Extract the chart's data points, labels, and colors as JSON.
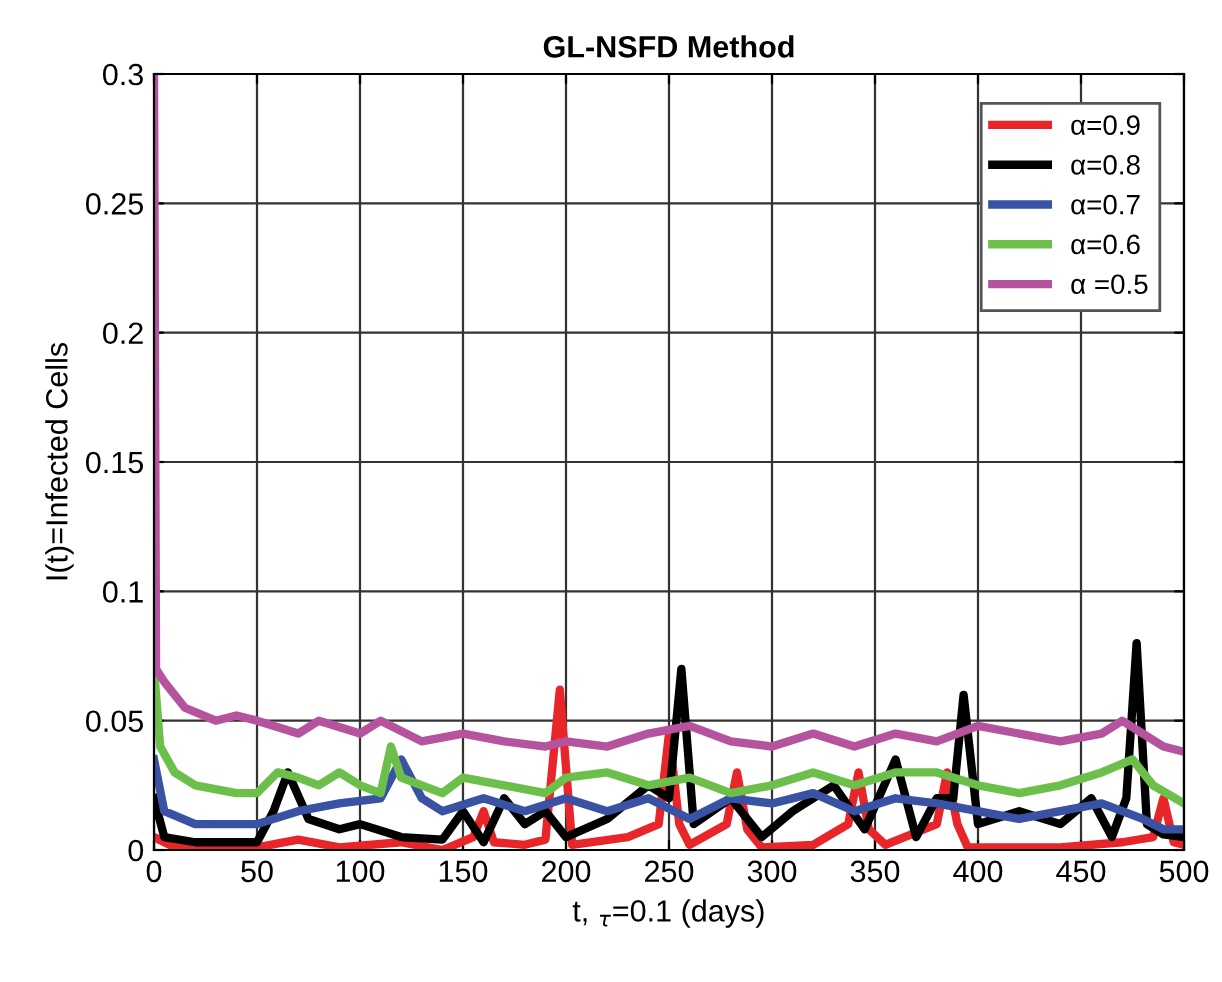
{
  "chart_data": {
    "type": "line",
    "title": "GL-NSFD Method",
    "xlabel": "t, $_{τ}$=0.1 (days)",
    "ylabel": "I(t)=Infected Cells",
    "xlim": [
      0,
      500
    ],
    "ylim": [
      0,
      0.3
    ],
    "xticks": [
      0,
      50,
      100,
      150,
      200,
      250,
      300,
      350,
      400,
      450,
      500
    ],
    "yticks": [
      0,
      0.05,
      0.1,
      0.15,
      0.2,
      0.25,
      0.3
    ],
    "grid": true,
    "legend": "top right",
    "line_style": "solid",
    "marker": "none",
    "series": [
      {
        "name": "α=0.9",
        "color": "#e8262a",
        "x": [
          0,
          10,
          30,
          50,
          70,
          90,
          120,
          140,
          155,
          160,
          165,
          180,
          190,
          197,
          203,
          230,
          245,
          250,
          255,
          260,
          278,
          283,
          288,
          295,
          320,
          337,
          342,
          347,
          355,
          380,
          385,
          390,
          395,
          440,
          470,
          485,
          490,
          495,
          500
        ],
        "values": [
          0.005,
          0.001,
          0.002,
          0.001,
          0.004,
          0.001,
          0.003,
          0.0,
          0.005,
          0.015,
          0.003,
          0.002,
          0.004,
          0.062,
          0.002,
          0.005,
          0.01,
          0.045,
          0.01,
          0.002,
          0.01,
          0.03,
          0.008,
          0.001,
          0.002,
          0.01,
          0.03,
          0.008,
          0.002,
          0.01,
          0.03,
          0.01,
          0.001,
          0.001,
          0.003,
          0.005,
          0.02,
          0.003,
          0.002
        ]
      },
      {
        "name": "α=0.8",
        "color": "#000000",
        "x": [
          0,
          5,
          20,
          50,
          58,
          65,
          75,
          90,
          100,
          120,
          140,
          150,
          160,
          170,
          180,
          190,
          200,
          220,
          240,
          250,
          256,
          262,
          280,
          295,
          310,
          330,
          345,
          360,
          370,
          380,
          388,
          393,
          400,
          420,
          440,
          455,
          465,
          472,
          477,
          482,
          490,
          500
        ],
        "values": [
          0.02,
          0.005,
          0.003,
          0.003,
          0.015,
          0.03,
          0.012,
          0.008,
          0.01,
          0.005,
          0.004,
          0.015,
          0.003,
          0.02,
          0.01,
          0.015,
          0.005,
          0.012,
          0.025,
          0.02,
          0.07,
          0.01,
          0.02,
          0.005,
          0.015,
          0.025,
          0.008,
          0.035,
          0.005,
          0.02,
          0.02,
          0.06,
          0.01,
          0.015,
          0.01,
          0.02,
          0.005,
          0.02,
          0.08,
          0.01,
          0.006,
          0.005
        ]
      },
      {
        "name": "α=0.7",
        "color": "#3a52a4",
        "x": [
          0,
          5,
          20,
          50,
          70,
          90,
          110,
          120,
          130,
          140,
          160,
          180,
          200,
          220,
          240,
          260,
          280,
          300,
          320,
          340,
          360,
          380,
          400,
          420,
          440,
          460,
          480,
          490,
          500
        ],
        "values": [
          0.035,
          0.015,
          0.01,
          0.01,
          0.015,
          0.018,
          0.02,
          0.035,
          0.02,
          0.015,
          0.02,
          0.015,
          0.02,
          0.015,
          0.02,
          0.012,
          0.02,
          0.018,
          0.022,
          0.015,
          0.02,
          0.018,
          0.015,
          0.012,
          0.015,
          0.018,
          0.012,
          0.008,
          0.008
        ]
      },
      {
        "name": "α=0.6",
        "color": "#6cbf4a",
        "x": [
          0,
          3,
          10,
          20,
          40,
          50,
          60,
          70,
          80,
          90,
          100,
          110,
          115,
          120,
          130,
          140,
          150,
          170,
          190,
          200,
          220,
          240,
          260,
          280,
          300,
          320,
          340,
          360,
          380,
          400,
          420,
          440,
          460,
          475,
          485,
          500
        ],
        "values": [
          0.07,
          0.04,
          0.03,
          0.025,
          0.022,
          0.022,
          0.03,
          0.028,
          0.025,
          0.03,
          0.025,
          0.022,
          0.04,
          0.028,
          0.025,
          0.022,
          0.028,
          0.025,
          0.022,
          0.028,
          0.03,
          0.025,
          0.028,
          0.022,
          0.025,
          0.03,
          0.025,
          0.03,
          0.03,
          0.025,
          0.022,
          0.025,
          0.03,
          0.035,
          0.025,
          0.018
        ]
      },
      {
        "name": "α =0.5",
        "color": "#b5539e",
        "x": [
          0,
          1,
          5,
          15,
          30,
          40,
          50,
          70,
          80,
          100,
          110,
          130,
          150,
          170,
          190,
          200,
          220,
          240,
          260,
          280,
          300,
          320,
          340,
          360,
          380,
          400,
          420,
          440,
          460,
          470,
          480,
          490,
          500
        ],
        "values": [
          0.3,
          0.07,
          0.065,
          0.055,
          0.05,
          0.052,
          0.05,
          0.045,
          0.05,
          0.045,
          0.05,
          0.042,
          0.045,
          0.042,
          0.04,
          0.042,
          0.04,
          0.045,
          0.048,
          0.042,
          0.04,
          0.045,
          0.04,
          0.045,
          0.042,
          0.048,
          0.045,
          0.042,
          0.045,
          0.05,
          0.045,
          0.04,
          0.038
        ]
      }
    ]
  }
}
